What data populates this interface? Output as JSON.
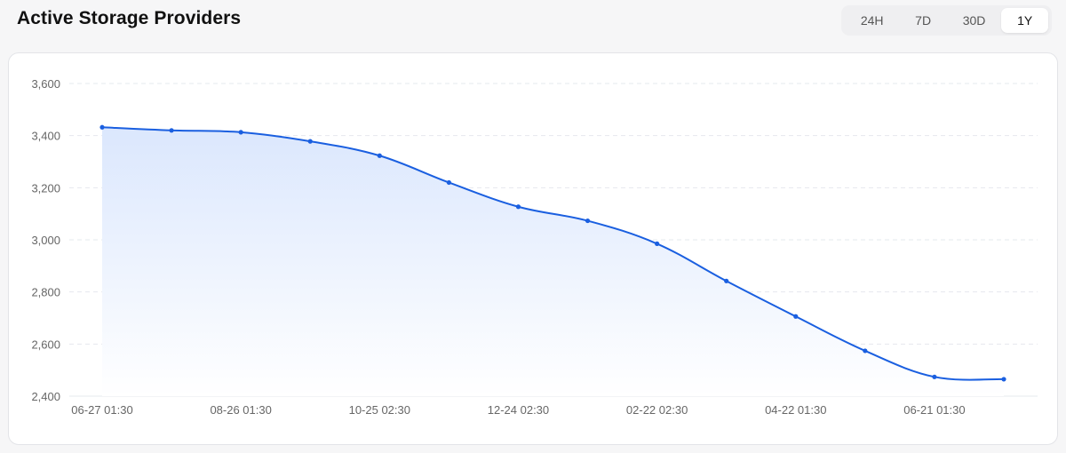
{
  "header": {
    "title": "Active Storage Providers"
  },
  "range_tabs": [
    {
      "label": "24H",
      "active": false
    },
    {
      "label": "7D",
      "active": false
    },
    {
      "label": "30D",
      "active": false
    },
    {
      "label": "1Y",
      "active": true
    }
  ],
  "colors": {
    "line": "#1a5fe0",
    "area_top": "#dbe7fd",
    "area_bottom": "#ffffff",
    "grid": "#e6e8ee",
    "axis_text": "#666666"
  },
  "chart_data": {
    "type": "area",
    "title": "Active Storage Providers",
    "xlabel": "",
    "ylabel": "",
    "ylim": [
      2400,
      3600
    ],
    "y_ticks": [
      "3,600",
      "3,400",
      "3,200",
      "3,000",
      "2,800",
      "2,600",
      "2,400"
    ],
    "y_tick_values": [
      3600,
      3400,
      3200,
      3000,
      2800,
      2600,
      2400
    ],
    "x_tick_labels": [
      "06-27 01:30",
      "08-26 01:30",
      "10-25 02:30",
      "12-24 02:30",
      "02-22 02:30",
      "04-22 01:30",
      "06-21 01:30"
    ],
    "x_tick_indices": [
      0,
      2,
      4,
      6,
      8,
      10,
      12
    ],
    "grid": true,
    "legend": "none",
    "series": [
      {
        "values": [
          3432,
          3420,
          3413,
          3378,
          3323,
          3220,
          3127,
          3073,
          2985,
          2842,
          2706,
          2574,
          2474,
          2465
        ]
      }
    ]
  }
}
